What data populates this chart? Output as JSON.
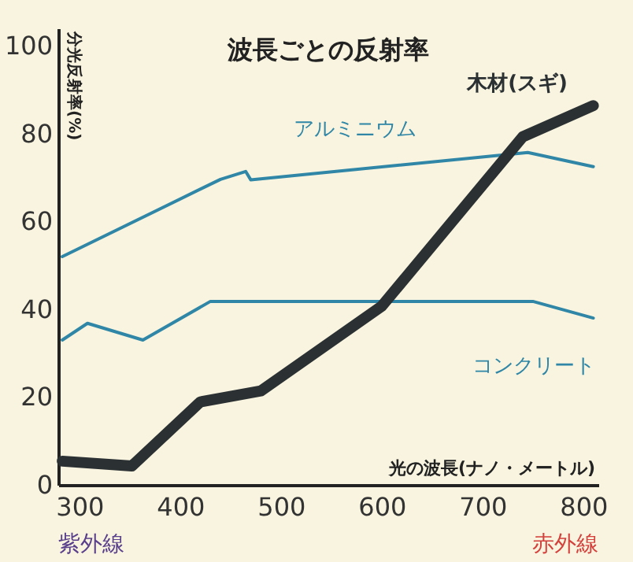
{
  "chart_data": {
    "type": "line",
    "title": "波長ごとの反射率",
    "xlabel": "光の波長(ナノ・メートル)",
    "ylabel": "分光反射率(%)",
    "series": [
      {
        "name": "アルミニウム",
        "color": "#2f86a6",
        "x": [
          283,
          440,
          465,
          470,
          745,
          810
        ],
        "values": [
          52,
          69.6,
          71.4,
          69.5,
          75.7,
          72.5
        ]
      },
      {
        "name": "コンクリート",
        "color": "#2f86a6",
        "x": [
          283,
          308,
          363,
          430,
          750,
          810
        ],
        "values": [
          33,
          36.8,
          33,
          41.8,
          41.8,
          38
        ]
      },
      {
        "name": "木材(スギ)",
        "color": "#2b3033",
        "x": [
          283,
          352,
          420,
          480,
          600,
          740,
          810
        ],
        "values": [
          5.4,
          4.3,
          18.9,
          21.4,
          40.7,
          79.3,
          86.4
        ]
      }
    ],
    "xlim": [
      279,
      815
    ],
    "ylim": [
      0,
      104
    ],
    "xticks": [
      300,
      400,
      500,
      600,
      700,
      800
    ],
    "yticks": [
      0,
      20,
      40,
      60,
      80,
      100
    ],
    "annotations": [
      "紫外線",
      "赤外線"
    ],
    "grid": false,
    "marker": "none",
    "line_style": "solid"
  }
}
